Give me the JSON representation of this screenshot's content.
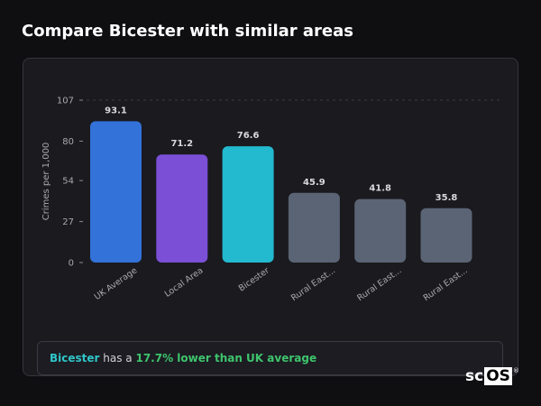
{
  "page": {
    "title": "Compare Bicester with similar areas"
  },
  "summary": {
    "area_name": "Bicester",
    "connector": " has a ",
    "difference_text": "17.7% lower than UK average"
  },
  "logo": {
    "prefix": "sc",
    "highlight": "OS",
    "mark": "®"
  },
  "colors": {
    "background": "#0f0f12",
    "card": "#1a1a1f",
    "uk_average": "#3372d9",
    "local_area": "#7b4fd6",
    "bicester": "#23b9cf",
    "rural": "#5a6474",
    "accent_area": "#2fc6c9",
    "accent_diff": "#3ec46d"
  },
  "chart_data": {
    "type": "bar",
    "ylabel": "Crimes per 1,000",
    "xlabel": "",
    "ylim": [
      0,
      107
    ],
    "yticks": [
      0,
      27,
      54,
      80,
      107
    ],
    "categories": [
      "UK Average",
      "Local Area",
      "Bicester",
      "Rural East...",
      "Rural East...",
      "Rural East..."
    ],
    "values": [
      93.1,
      71.2,
      76.6,
      45.9,
      41.8,
      35.8
    ],
    "bar_colors": [
      "#3372d9",
      "#7b4fd6",
      "#23b9cf",
      "#5a6474",
      "#5a6474",
      "#5a6474"
    ],
    "grid": "dashed at top"
  }
}
